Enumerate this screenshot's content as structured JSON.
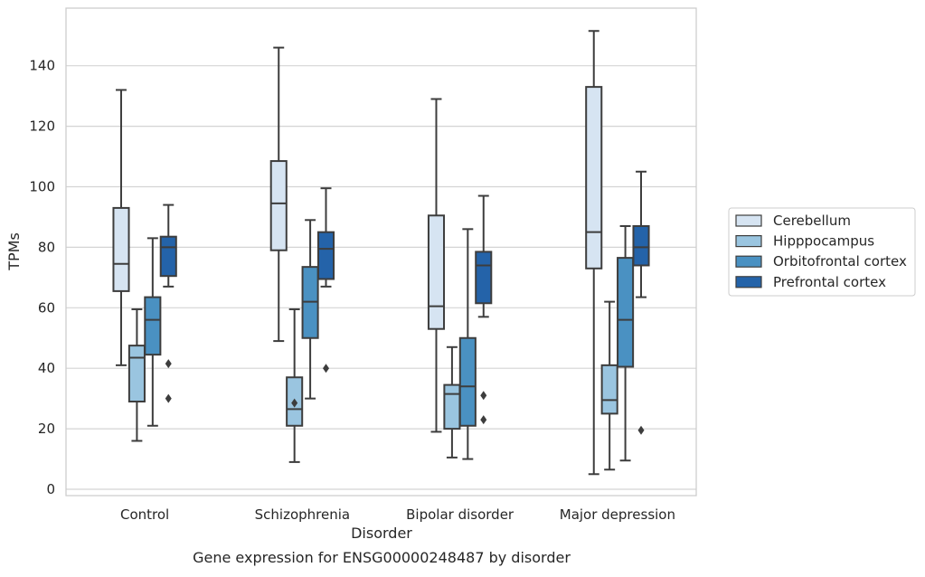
{
  "chart_data": {
    "type": "box",
    "xlabel": "Disorder",
    "ylabel": "TPMs",
    "caption": "Gene expression for ENSG00000248487 by disorder",
    "ylim": [
      -2,
      159
    ],
    "yticks": [
      0,
      20,
      40,
      60,
      80,
      100,
      120,
      140
    ],
    "grid": "horizontal",
    "legend_position": "right",
    "categories": [
      "Control",
      "Schizophrenia",
      "Bipolar disorder",
      "Major depression"
    ],
    "series": [
      {
        "name": "Cerebellum",
        "color": "#d6e4f2",
        "boxes": [
          {
            "whislo": 41,
            "q1": 65.5,
            "med": 74.5,
            "q3": 93,
            "whishi": 132,
            "fliers": []
          },
          {
            "whislo": 49,
            "q1": 79,
            "med": 94.5,
            "q3": 108.5,
            "whishi": 146,
            "fliers": []
          },
          {
            "whislo": 19,
            "q1": 53,
            "med": 60.5,
            "q3": 90.5,
            "whishi": 129,
            "fliers": []
          },
          {
            "whislo": 5,
            "q1": 73,
            "med": 85,
            "q3": 133,
            "whishi": 151.5,
            "fliers": []
          }
        ]
      },
      {
        "name": "Hipppocampus",
        "color": "#9ac5e0",
        "boxes": [
          {
            "whislo": 16,
            "q1": 29,
            "med": 43.5,
            "q3": 47.5,
            "whishi": 59.5,
            "fliers": []
          },
          {
            "whislo": 9,
            "q1": 21,
            "med": 26.5,
            "q3": 37,
            "whishi": 59.5,
            "fliers": [
              28.5
            ]
          },
          {
            "whislo": 10.5,
            "q1": 20,
            "med": 31.5,
            "q3": 34.5,
            "whishi": 47,
            "fliers": []
          },
          {
            "whislo": 6.5,
            "q1": 25,
            "med": 29.5,
            "q3": 41,
            "whishi": 62,
            "fliers": []
          }
        ]
      },
      {
        "name": "Orbitofrontal cortex",
        "color": "#4a91c2",
        "boxes": [
          {
            "whislo": 21,
            "q1": 44.5,
            "med": 56,
            "q3": 63.5,
            "whishi": 83,
            "fliers": []
          },
          {
            "whislo": 30,
            "q1": 50,
            "med": 62,
            "q3": 73.5,
            "whishi": 89,
            "fliers": []
          },
          {
            "whislo": 10,
            "q1": 21,
            "med": 34,
            "q3": 50,
            "whishi": 86,
            "fliers": []
          },
          {
            "whislo": 9.5,
            "q1": 40.5,
            "med": 56,
            "q3": 76.5,
            "whishi": 87,
            "fliers": []
          }
        ]
      },
      {
        "name": "Prefrontal cortex",
        "color": "#2463a9",
        "boxes": [
          {
            "whislo": 67,
            "q1": 70.5,
            "med": 80,
            "q3": 83.5,
            "whishi": 94,
            "fliers": [
              41.5,
              30
            ]
          },
          {
            "whislo": 67,
            "q1": 69.5,
            "med": 79.5,
            "q3": 85,
            "whishi": 99.5,
            "fliers": [
              40
            ]
          },
          {
            "whislo": 57,
            "q1": 61.5,
            "med": 74,
            "q3": 78.5,
            "whishi": 97,
            "fliers": [
              31,
              23
            ]
          },
          {
            "whislo": 63.5,
            "q1": 74,
            "med": 80,
            "q3": 87,
            "whishi": 105,
            "fliers": [
              19.5
            ]
          }
        ]
      }
    ]
  }
}
